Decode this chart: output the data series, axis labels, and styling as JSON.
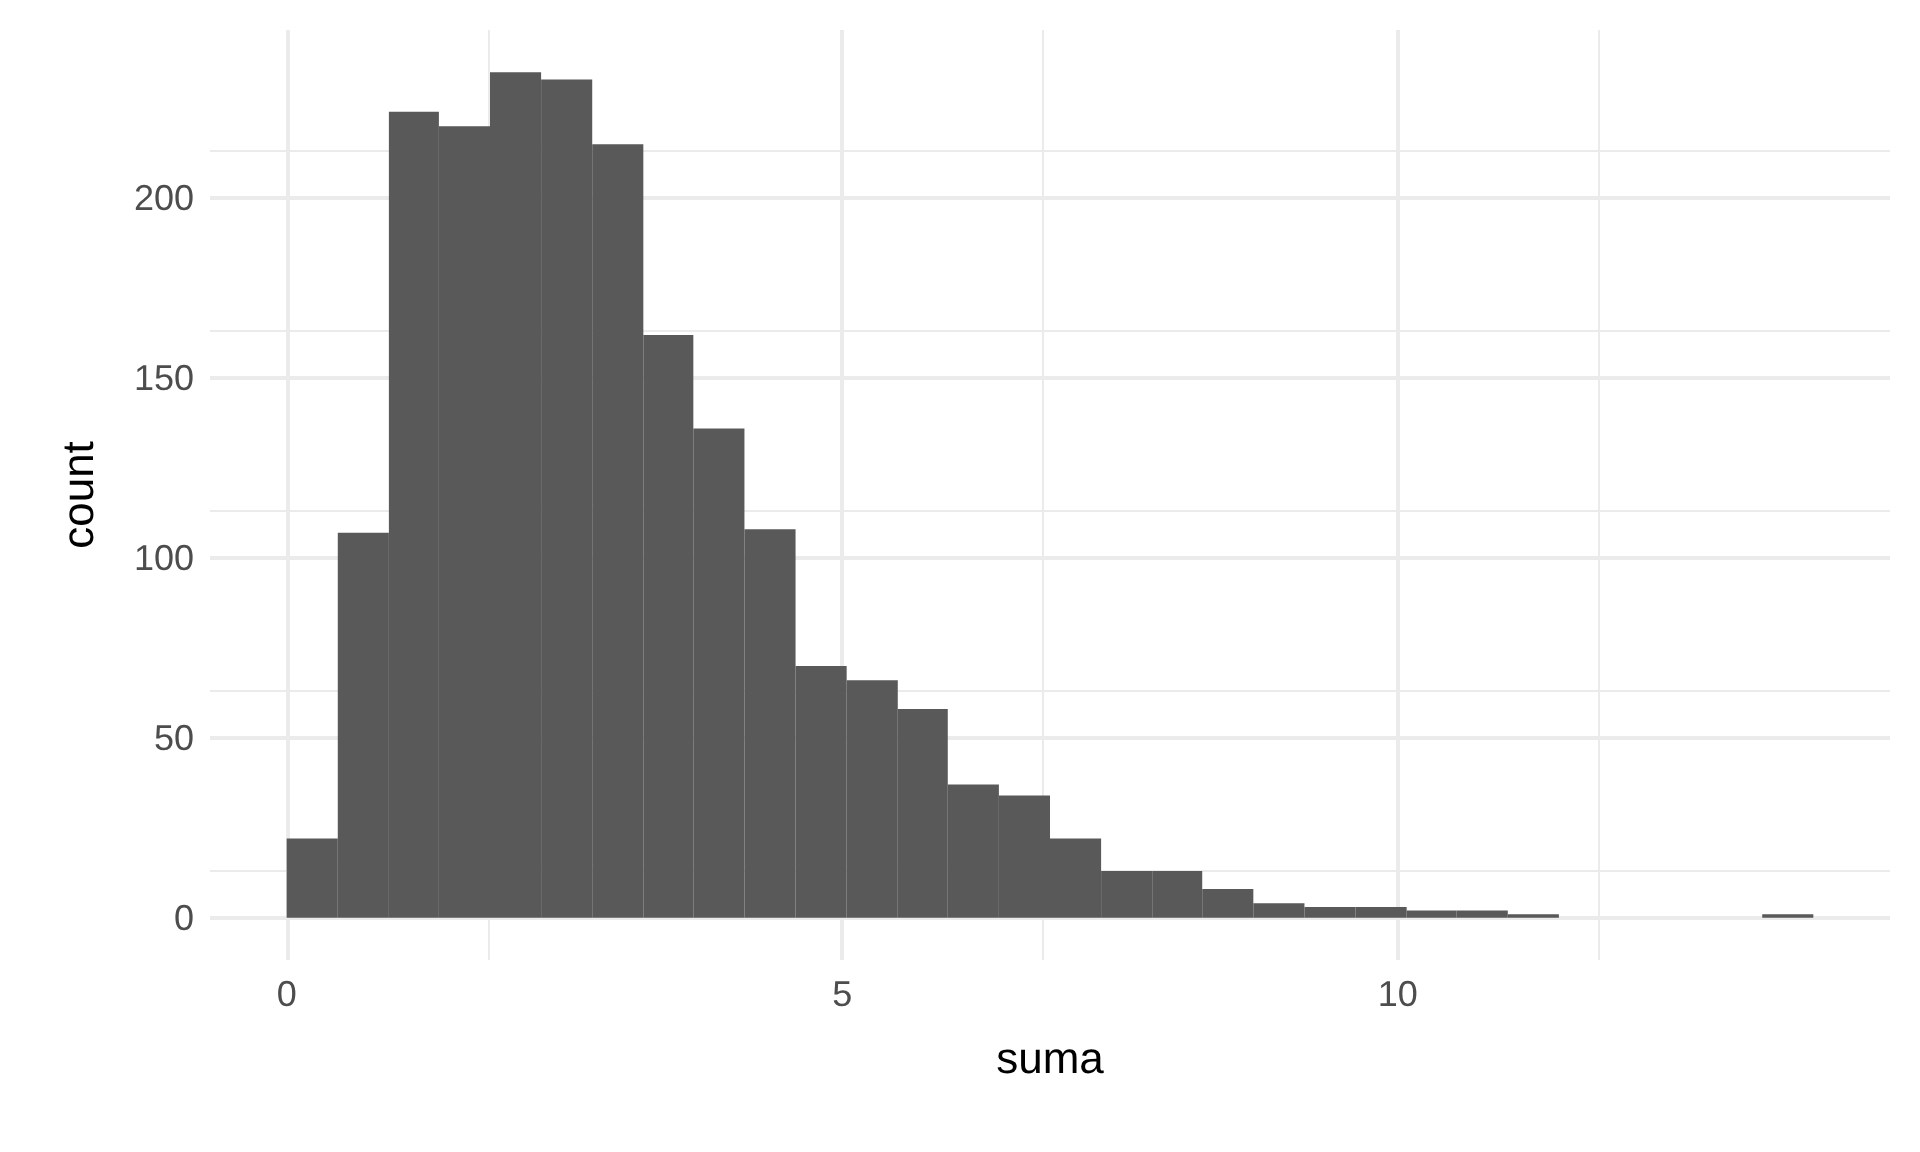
{
  "chart_data": {
    "type": "histogram",
    "xlabel": "suma",
    "ylabel": "count",
    "color": "#595959",
    "bins": [
      0,
      0.46,
      0.92,
      1.37,
      1.83,
      2.29,
      2.75,
      3.21,
      3.66,
      4.12,
      4.58,
      5.04,
      5.5,
      5.95,
      6.41,
      6.87,
      7.33,
      7.79,
      8.24,
      8.7,
      9.16,
      9.62,
      10.08,
      10.53,
      10.99,
      11.45,
      13.28,
      13.74
    ],
    "values": [
      22,
      107,
      224,
      220,
      235,
      233,
      215,
      162,
      136,
      108,
      70,
      66,
      58,
      37,
      34,
      22,
      13,
      13,
      8,
      4,
      3,
      3,
      2,
      2,
      1,
      0,
      1
    ],
    "xlim": [
      -0.69,
      14.43
    ],
    "xticks": [
      0,
      5,
      10
    ],
    "ylim": [
      -11.75,
      246.75
    ],
    "yticks": [
      0,
      50,
      100,
      150,
      200
    ],
    "grid": true
  }
}
